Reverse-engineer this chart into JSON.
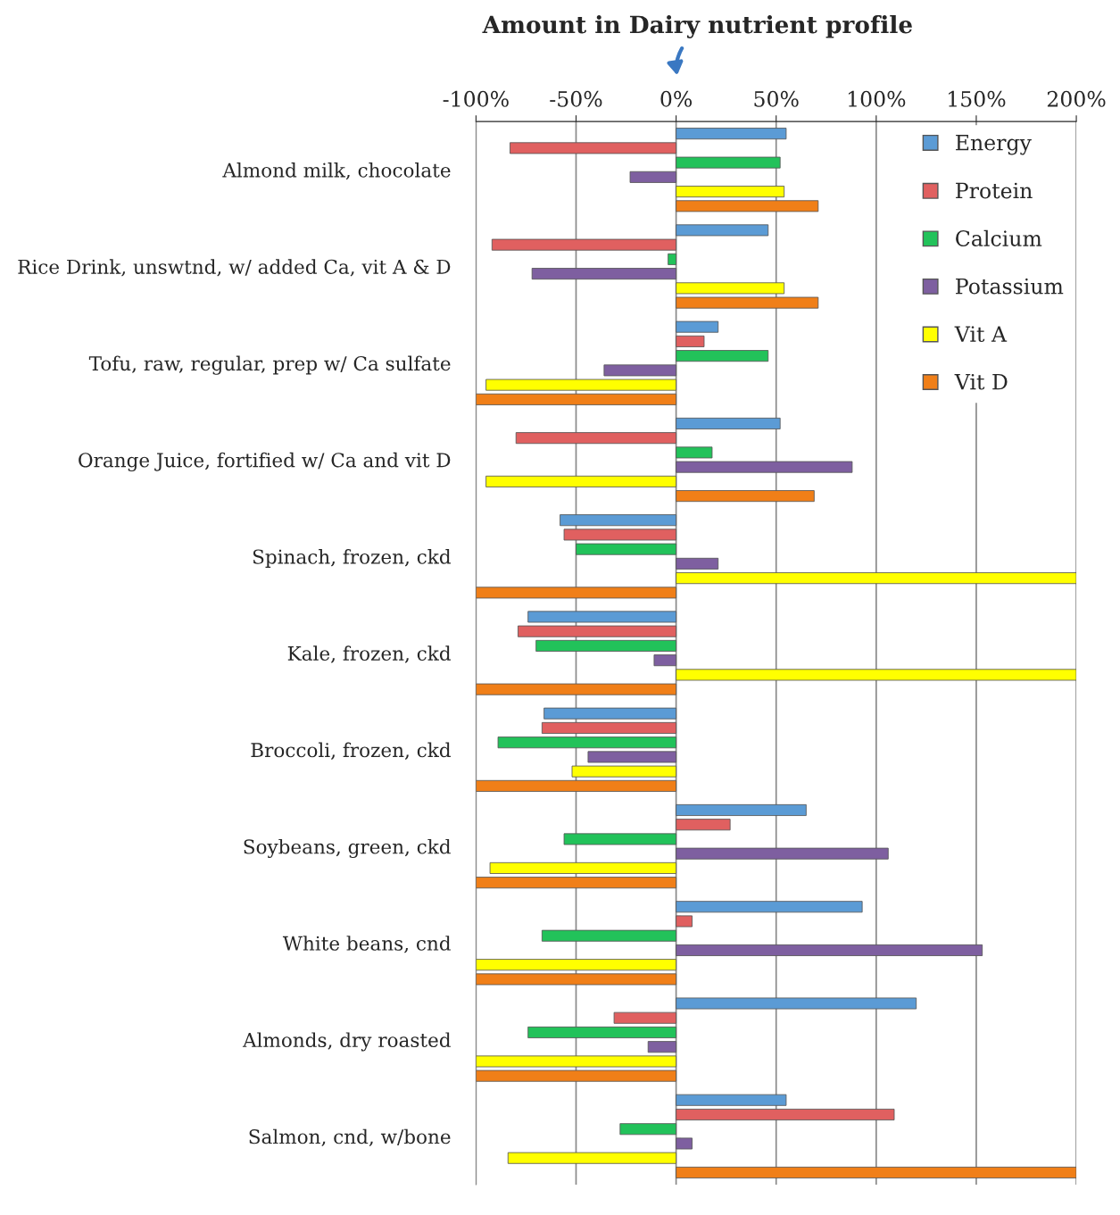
{
  "chart_data": {
    "type": "bar",
    "orientation": "horizontal",
    "title": "Amount in Dairy nutrient profile",
    "categories": [
      "Almond milk, chocolate",
      "Rice Drink, unswtnd, w/ added Ca, vit A & D",
      "Tofu, raw, regular, prep w/ Ca sulfate",
      "Orange Juice, fortified w/ Ca and vit D",
      "Spinach, frozen, ckd",
      "Kale, frozen, ckd",
      "Broccoli, frozen, ckd",
      "Soybeans, green, ckd",
      "White beans, cnd",
      "Almonds, dry roasted",
      "Salmon, cnd, w/bone"
    ],
    "series": [
      {
        "name": "Energy",
        "color": "#5b9bd5",
        "values": [
          55,
          46,
          21,
          52,
          -58,
          -74,
          -66,
          65,
          93,
          120,
          55
        ]
      },
      {
        "name": "Protein",
        "color": "#e06060",
        "values": [
          -83,
          -92,
          14,
          -80,
          -56,
          -79,
          -67,
          27,
          8,
          -31,
          109
        ]
      },
      {
        "name": "Calcium",
        "color": "#22c25a",
        "values": [
          52,
          -4,
          46,
          18,
          -50,
          -70,
          -89,
          -56,
          -67,
          -74,
          -28
        ]
      },
      {
        "name": "Potassium",
        "color": "#7e5fa0",
        "values": [
          -23,
          -72,
          -36,
          88,
          21,
          -11,
          -44,
          106,
          153,
          -14,
          8
        ]
      },
      {
        "name": "Vit A",
        "color": "#ffff00",
        "values": [
          54,
          54,
          -95,
          -95,
          200,
          200,
          -52,
          -93,
          -100,
          -100,
          -84
        ]
      },
      {
        "name": "Vit D",
        "color": "#f07f18",
        "values": [
          71,
          71,
          -100,
          69,
          -100,
          -100,
          -100,
          -100,
          -100,
          -100,
          200
        ]
      }
    ],
    "xlim": [
      -100,
      200
    ],
    "xticks": [
      {
        "value": -100,
        "label": "-100%"
      },
      {
        "value": -50,
        "label": "-50%"
      },
      {
        "value": 0,
        "label": "0%"
      },
      {
        "value": 50,
        "label": "50%"
      },
      {
        "value": 100,
        "label": "100%"
      },
      {
        "value": 150,
        "label": "150%"
      },
      {
        "value": 200,
        "label": "200%"
      }
    ],
    "grid": "x",
    "legend": "top right"
  }
}
